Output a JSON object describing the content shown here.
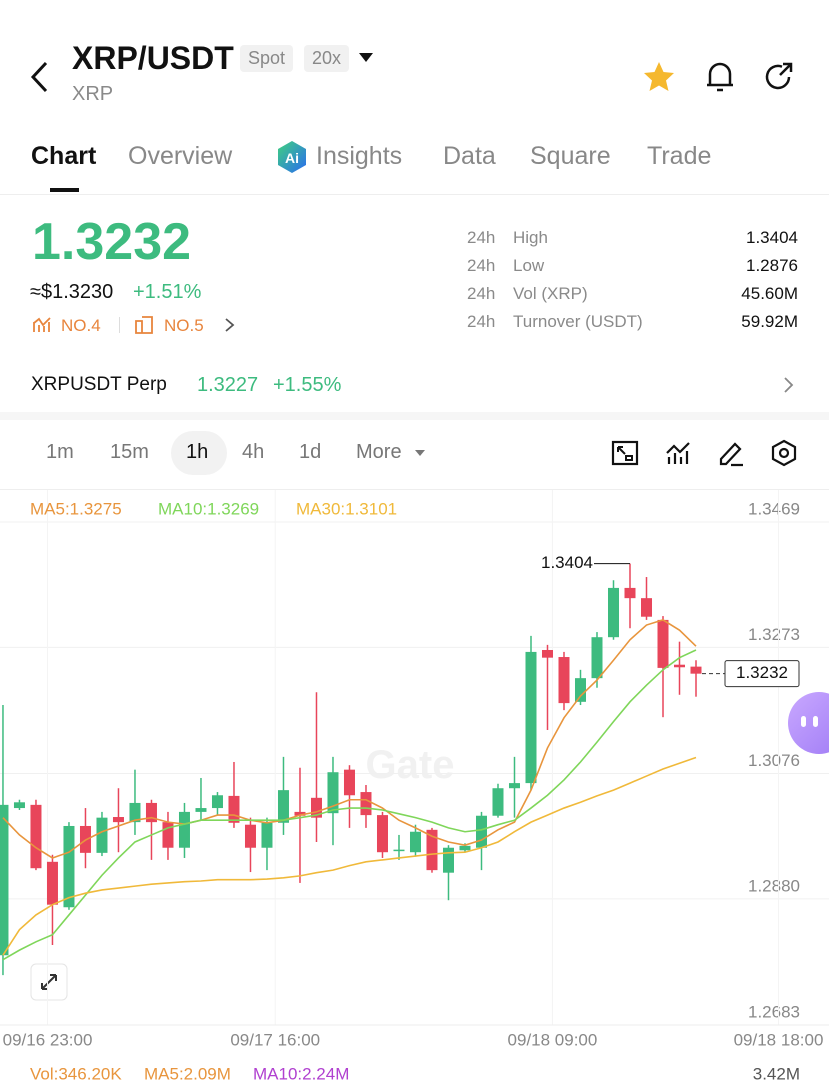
{
  "header": {
    "title": "XRP/USDT",
    "market": "Spot",
    "leverage": "20x",
    "subtitle": "XRP"
  },
  "tabs": [
    "Chart",
    "Overview",
    "Insights",
    "Data",
    "Square",
    "Trade"
  ],
  "price": {
    "last": "1.3232",
    "usd": "≈$1.3230",
    "change": "+1.51%",
    "rank_a": "NO.4",
    "rank_b": "NO.5"
  },
  "stats": [
    [
      "24h",
      "High",
      "1.3404"
    ],
    [
      "24h",
      "Low",
      "1.2876"
    ],
    [
      "24h",
      "Vol (XRP)",
      "45.60M"
    ],
    [
      "24h",
      "Turnover (USDT)",
      "59.92M"
    ]
  ],
  "perp": {
    "name": "XRPUSDT Perp",
    "price": "1.3227",
    "change": "+1.55%"
  },
  "intervals": [
    "1m",
    "15m",
    "1h",
    "4h",
    "1d",
    "More"
  ],
  "chart_data": {
    "type": "candlestick",
    "watermark": "Gate",
    "up_color": "#3dbb7f",
    "down_color": "#e8455a",
    "open": [
      1.2792,
      1.3022,
      1.3027,
      1.2938,
      1.2867,
      1.2994,
      1.2952,
      1.3008,
      1.3,
      1.303,
      1.3,
      1.296,
      1.3016,
      1.3022,
      1.3041,
      1.2996,
      1.296,
      1.2999,
      1.3016,
      1.3038,
      1.3014,
      1.3082,
      1.3047,
      1.3011,
      1.2956,
      1.2953,
      1.2988,
      1.2921,
      1.2956,
      1.296,
      1.301,
      1.3053,
      1.3061,
      1.3269,
      1.3258,
      1.3188,
      1.3225,
      1.3289,
      1.3366,
      1.335,
      1.3316,
      1.3246,
      1.3243
    ],
    "high": [
      1.3183,
      1.3035,
      1.3035,
      1.2949,
      1.3,
      1.3022,
      1.3016,
      1.3053,
      1.3082,
      1.3035,
      1.3016,
      1.303,
      1.3069,
      1.3047,
      1.3094,
      1.3007,
      1.3007,
      1.3102,
      1.3085,
      1.3203,
      1.3102,
      1.3089,
      1.3058,
      1.3016,
      1.298,
      1.2996,
      1.2991,
      1.2964,
      1.2967,
      1.3016,
      1.306,
      1.3102,
      1.3291,
      1.3277,
      1.3266,
      1.3238,
      1.3297,
      1.3378,
      1.3404,
      1.3383,
      1.3322,
      1.3282,
      1.3253
    ],
    "low": [
      1.2761,
      1.3019,
      1.2925,
      1.2808,
      1.2863,
      1.2928,
      1.2947,
      1.2953,
      1.298,
      1.2941,
      1.2941,
      1.2944,
      1.3003,
      1.3011,
      1.2991,
      1.2922,
      1.2925,
      1.298,
      1.2905,
      1.2969,
      1.2964,
      1.2991,
      1.2991,
      1.2944,
      1.2941,
      1.2946,
      1.2921,
      1.2878,
      1.2953,
      1.2925,
      1.3007,
      1.3007,
      1.305,
      1.3144,
      1.3175,
      1.3183,
      1.321,
      1.3285,
      1.3303,
      1.3316,
      1.3164,
      1.3199,
      1.3196
    ],
    "close": [
      1.3027,
      1.3031,
      1.2928,
      1.2871,
      1.2994,
      1.2952,
      1.3007,
      1.3,
      1.303,
      1.3,
      1.296,
      1.3016,
      1.3022,
      1.3042,
      1.2999,
      1.296,
      1.2999,
      1.305,
      1.301,
      1.3007,
      1.3078,
      1.3042,
      1.3011,
      1.2953,
      1.2957,
      1.2985,
      1.2925,
      1.296,
      1.2963,
      1.301,
      1.3053,
      1.3061,
      1.3266,
      1.3257,
      1.3186,
      1.3225,
      1.3289,
      1.3366,
      1.335,
      1.3321,
      1.3241,
      1.3242,
      1.3232
    ],
    "series": [
      {
        "name": "MA5:1.3275",
        "color": "#e8953d",
        "values": [
          1.3007,
          1.298,
          1.296,
          1.2944,
          1.2953,
          1.2972,
          1.2985,
          1.2994,
          1.3003,
          1.3007,
          1.3,
          1.2997,
          1.3003,
          1.3011,
          1.3011,
          1.3003,
          1.2999,
          1.3003,
          1.3011,
          1.3016,
          1.3025,
          1.3035,
          1.3035,
          1.3022,
          1.3003,
          1.2991,
          1.2978,
          1.2969,
          1.2964,
          1.2972,
          1.2988,
          1.3,
          1.305,
          1.3116,
          1.3163,
          1.3197,
          1.3222,
          1.3253,
          1.3285,
          1.3308,
          1.3316,
          1.33,
          1.3275
        ]
      },
      {
        "name": "MA10:1.3269",
        "color": "#7fd65a",
        "values": [
          1.2785,
          1.28,
          1.2813,
          1.2824,
          1.2855,
          1.2886,
          1.2917,
          1.2944,
          1.2969,
          1.298,
          1.2991,
          1.2997,
          1.3003,
          1.3003,
          1.3003,
          1.3003,
          1.3003,
          1.3003,
          1.3007,
          1.3011,
          1.3019,
          1.3022,
          1.3022,
          1.3019,
          1.3013,
          1.3007,
          1.3,
          1.2991,
          1.2985,
          1.2988,
          1.2996,
          1.3003,
          1.3022,
          1.3042,
          1.3066,
          1.3094,
          1.3125,
          1.3157,
          1.3188,
          1.3214,
          1.3238,
          1.3257,
          1.3269
        ]
      },
      {
        "name": "MA30:1.3101",
        "color": "#f0b93a",
        "values": [
          1.2792,
          1.2832,
          1.2855,
          1.2871,
          1.2882,
          1.2889,
          1.2894,
          1.2897,
          1.29,
          1.2903,
          1.2905,
          1.2907,
          1.2908,
          1.291,
          1.291,
          1.291,
          1.2911,
          1.2913,
          1.2916,
          1.2921,
          1.2925,
          1.2932,
          1.2938,
          1.2941,
          1.2944,
          1.2947,
          1.295,
          1.2952,
          1.2953,
          1.296,
          1.2969,
          1.2985,
          1.3,
          1.3011,
          1.3022,
          1.3031,
          1.3041,
          1.305,
          1.3061,
          1.3072,
          1.3083,
          1.3092,
          1.3101
        ]
      }
    ],
    "high_label": 1.3404,
    "last_price": 1.3232,
    "xlim": [
      -0.18,
      50.06
    ],
    "xticks": [
      {
        "value": 2.7,
        "label": "09/16 23:00"
      },
      {
        "value": 16.5,
        "label": "09/17 16:00"
      },
      {
        "value": 33.3,
        "label": "09/18 09:00"
      },
      {
        "value": 47,
        "label": "09/18 18:00"
      }
    ],
    "ylim": [
      1.2683,
      1.3469
    ],
    "yticks": [
      1.3469,
      1.3273,
      1.3076,
      {
        "value": 1.288,
        "label": "1.2880"
      },
      1.2683
    ],
    "grid": true,
    "volume_legend": [
      {
        "text": "Vol:346.20K",
        "color": "#e8953d"
      },
      {
        "text": "MA5:2.09M",
        "color": "#e8953d"
      },
      {
        "text": "MA10:2.24M",
        "color": "#b040d0"
      }
    ],
    "volume_max_label": "3.42M"
  }
}
